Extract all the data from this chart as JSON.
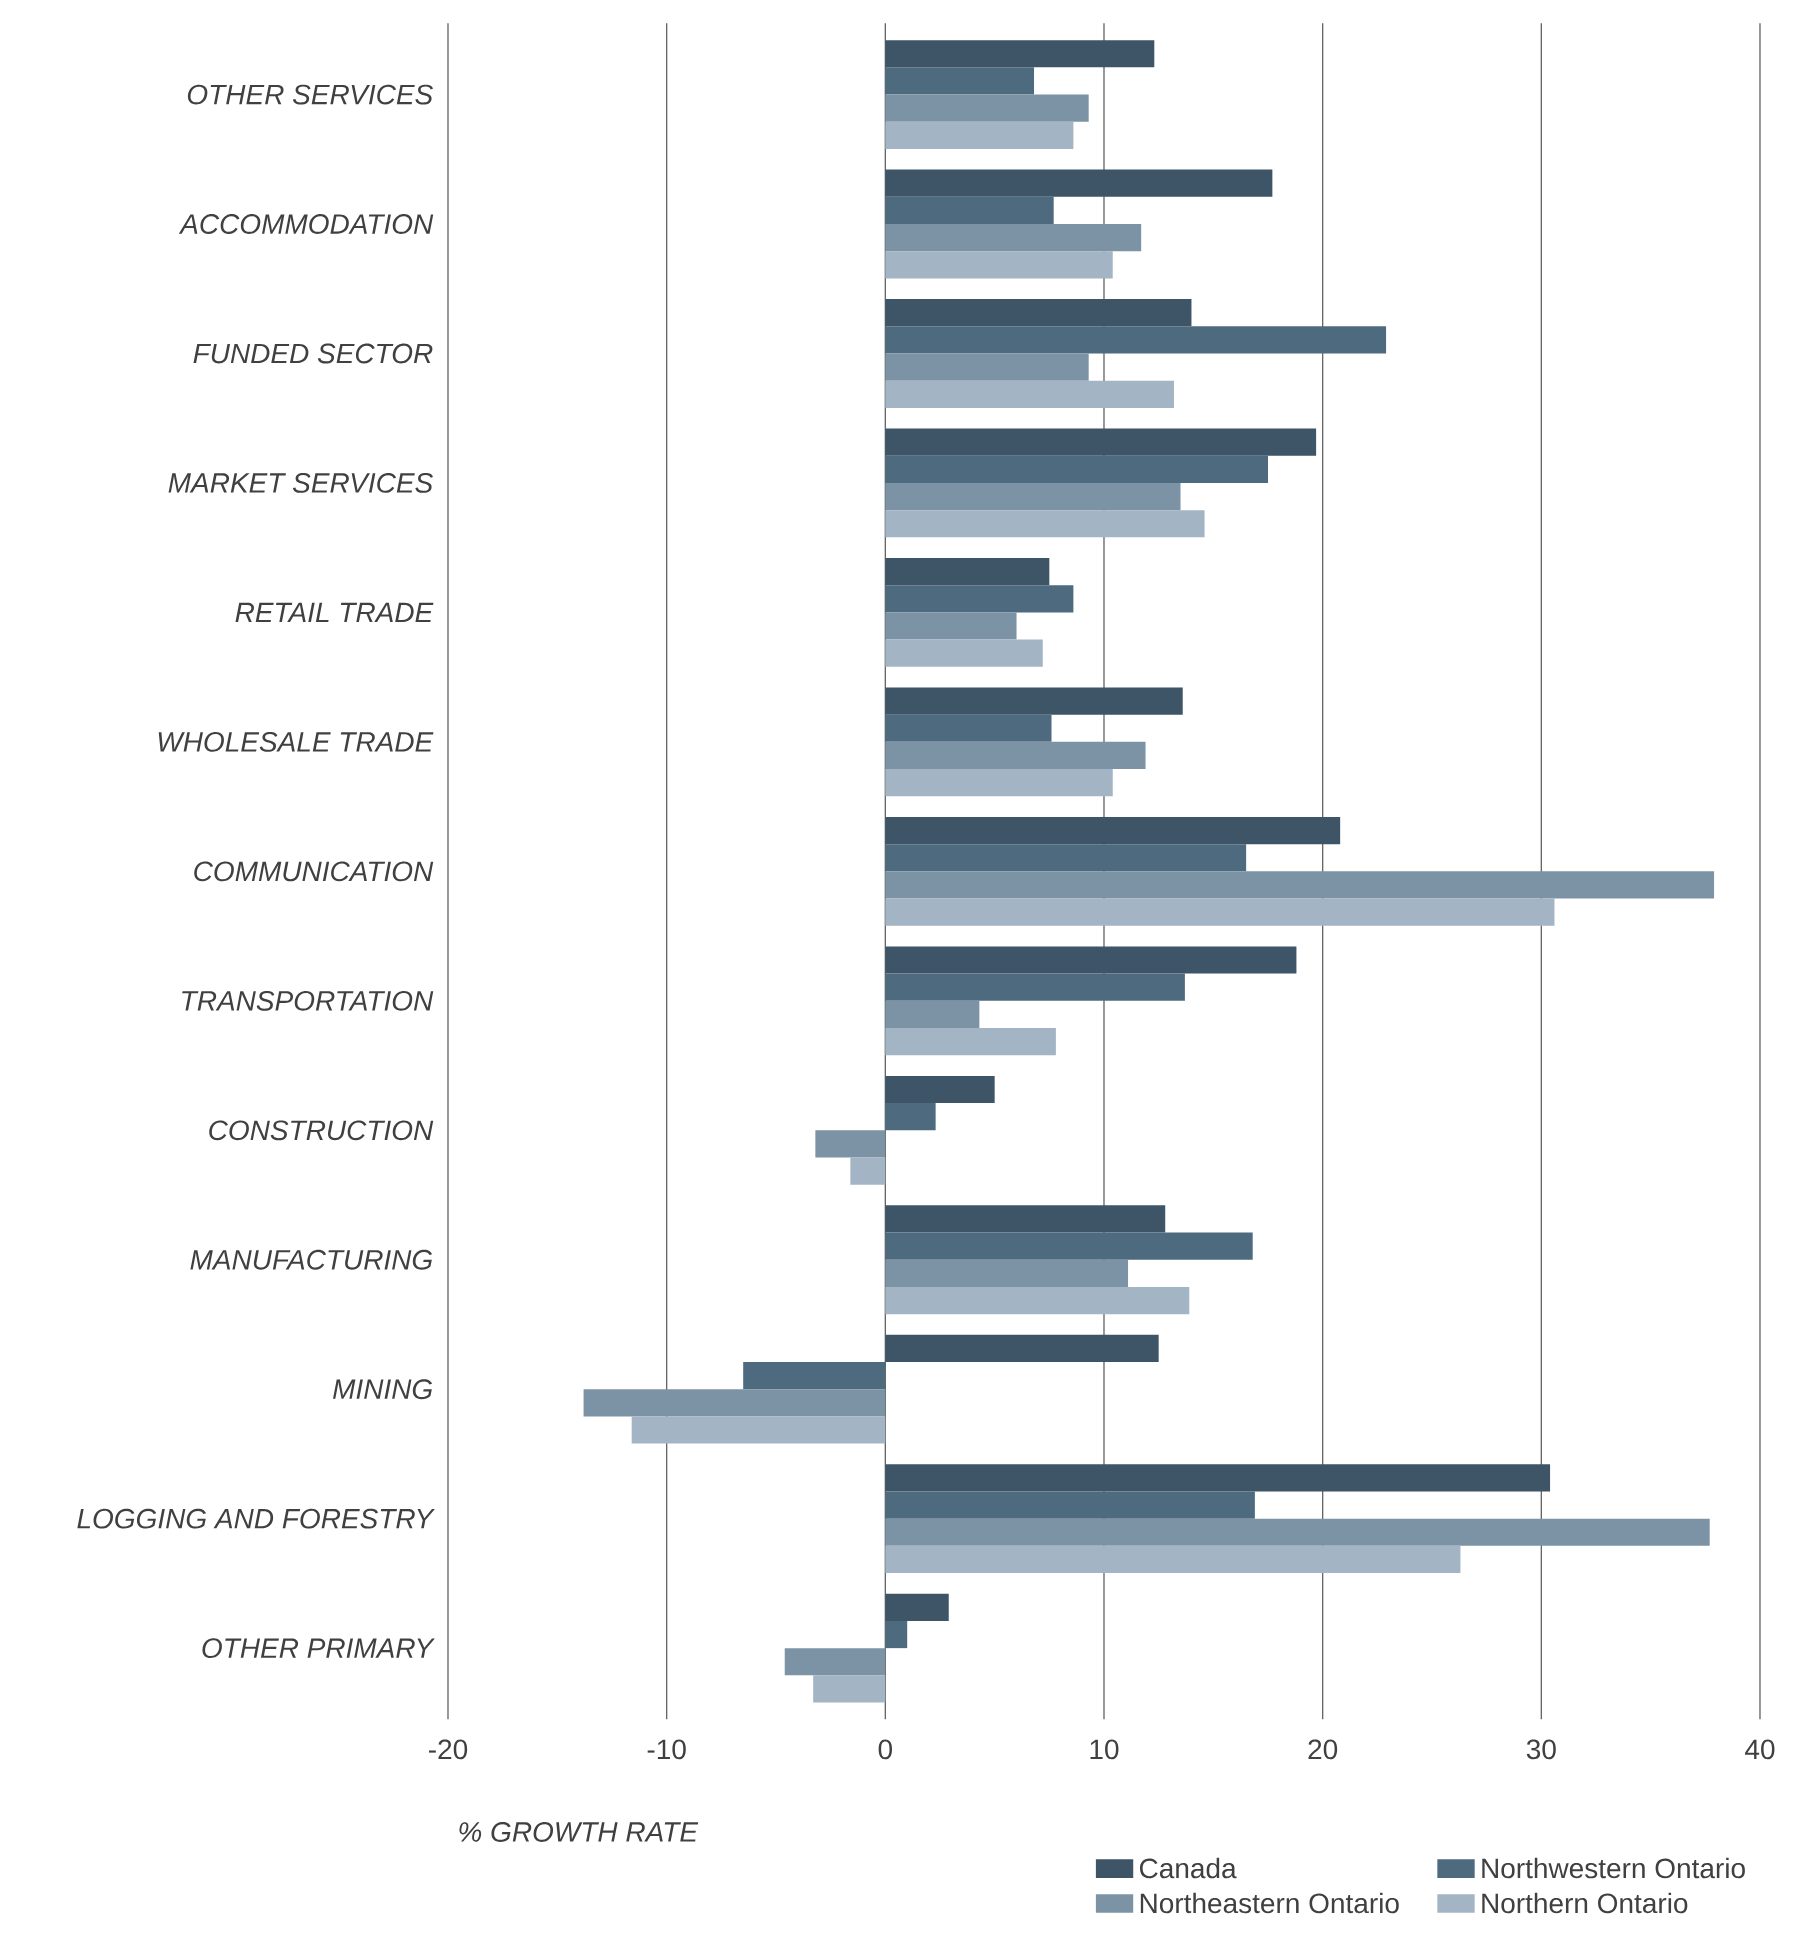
{
  "chart_data": {
    "type": "bar",
    "orientation": "horizontal",
    "xlabel": "% GROWTH RATE",
    "categories": [
      "OTHER SERVICES",
      "ACCOMMODATION",
      "FUNDED SECTOR",
      "MARKET SERVICES",
      "RETAIL TRADE",
      "WHOLESALE TRADE",
      "COMMUNICATION",
      "TRANSPORTATION",
      "CONSTRUCTION",
      "MANUFACTURING",
      "MINING",
      "LOGGING AND FORESTRY",
      "OTHER PRIMARY"
    ],
    "series": [
      {
        "name": "Canada",
        "color": "#3d5566",
        "values": [
          12.3,
          17.7,
          14,
          19.7,
          7.5,
          13.6,
          20.8,
          18.8,
          5,
          12.8,
          12.5,
          30.4,
          2.9
        ]
      },
      {
        "name": "Northwestern Ontario",
        "color": "#4e6a7f",
        "values": [
          6.8,
          7.7,
          22.9,
          17.5,
          8.6,
          7.6,
          16.5,
          13.7,
          2.3,
          16.8,
          -6.5,
          16.9,
          1
        ]
      },
      {
        "name": "Northeastern Ontario",
        "color": "#7c93a5",
        "values": [
          9.3,
          11.7,
          9.3,
          13.5,
          6,
          11.9,
          37.9,
          4.3,
          -3.2,
          11.1,
          -13.8,
          37.7,
          -4.6
        ]
      },
      {
        "name": "Northern Ontario",
        "color": "#a3b5c4",
        "values": [
          8.6,
          10.4,
          13.2,
          14.6,
          7.2,
          10.4,
          30.6,
          7.8,
          -1.6,
          13.9,
          -11.6,
          26.3,
          -3.3
        ]
      }
    ],
    "xlim": [
      -20,
      40
    ],
    "xticks": [
      -20,
      -10,
      0,
      10,
      20,
      30,
      40
    ],
    "grid": "x",
    "legend": "bottom right"
  }
}
